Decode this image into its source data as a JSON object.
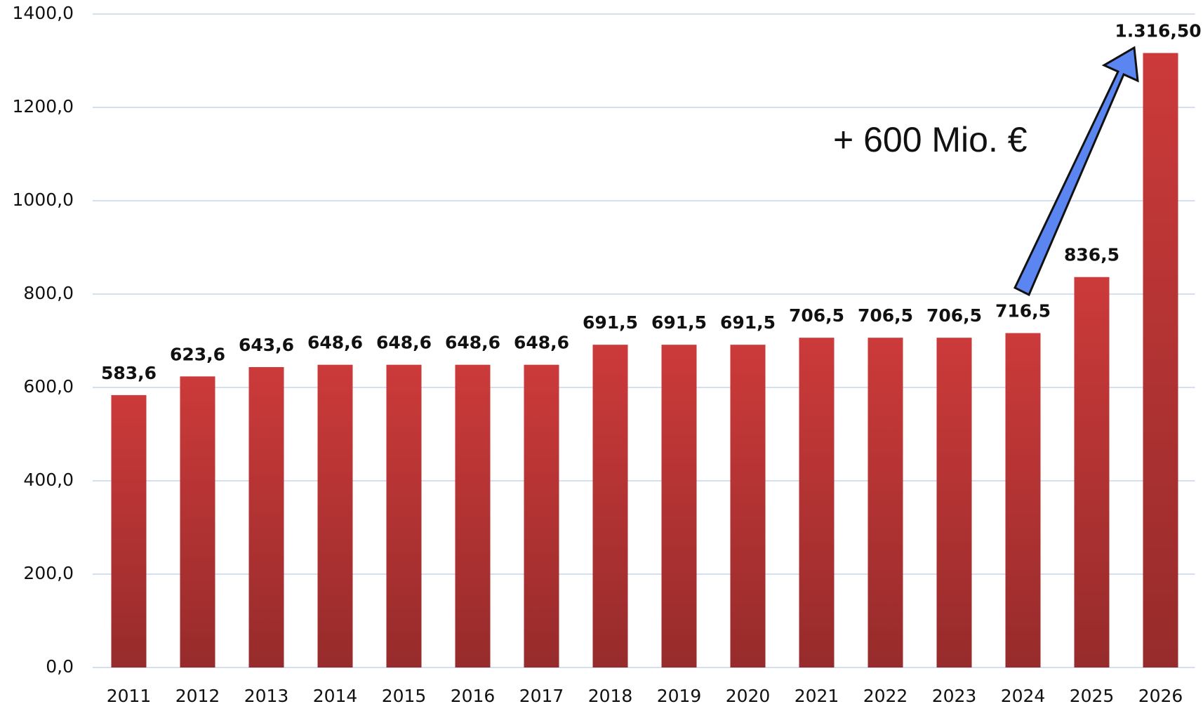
{
  "chart_data": {
    "type": "bar",
    "categories": [
      "2011",
      "2012",
      "2013",
      "2014",
      "2015",
      "2016",
      "2017",
      "2018",
      "2019",
      "2020",
      "2021",
      "2022",
      "2023",
      "2024",
      "2025",
      "2026"
    ],
    "values": [
      583.6,
      623.6,
      643.6,
      648.6,
      648.6,
      648.6,
      648.6,
      691.5,
      691.5,
      691.5,
      706.5,
      706.5,
      706.5,
      716.5,
      836.5,
      1316.5
    ],
    "value_labels": [
      "583,6",
      "623,6",
      "643,6",
      "648,6",
      "648,6",
      "648,6",
      "648,6",
      "691,5",
      "691,5",
      "691,5",
      "706,5",
      "706,5",
      "706,5",
      "716,5",
      "836,5",
      "1.316,50"
    ],
    "color": "#cc3a3a",
    "ylim": [
      0,
      1400
    ],
    "yticks": [
      {
        "value": 0,
        "label": "0,0"
      },
      {
        "value": 200,
        "label": "200,0"
      },
      {
        "value": 400,
        "label": "400,0"
      },
      {
        "value": 600,
        "label": "600,0"
      },
      {
        "value": 800,
        "label": "800,0"
      },
      {
        "value": 1000,
        "label": "1000,0"
      },
      {
        "value": 1200,
        "label": "1200,0"
      },
      {
        "value": 1400,
        "label": "1400,0"
      }
    ],
    "grid": true,
    "annotation": "+ 600 Mio. €"
  }
}
